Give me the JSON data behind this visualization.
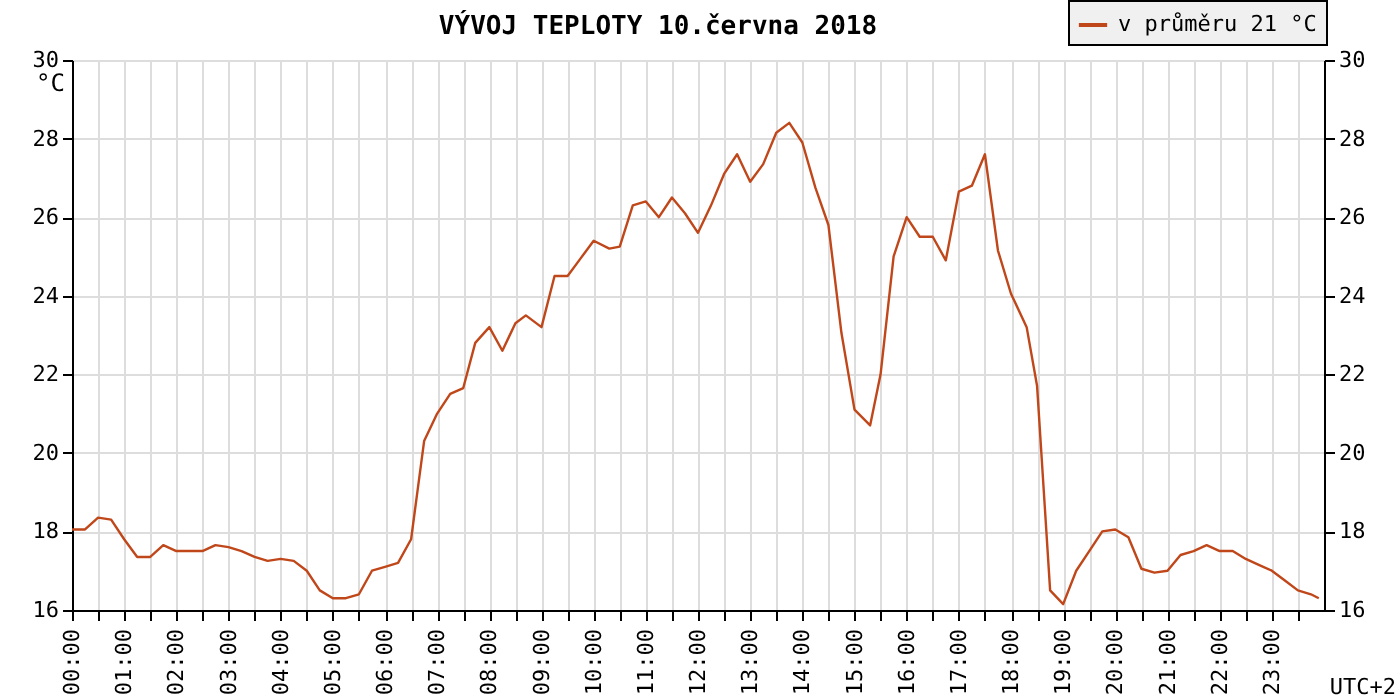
{
  "chart_data": {
    "type": "line",
    "title": "VÝVOJ TEPLOTY  10.června 2018",
    "ylabel": "°C",
    "annotations": [
      "UTC+2"
    ],
    "xlim": [
      0,
      24
    ],
    "xticks": [
      {
        "value": 0,
        "label": "00:00"
      },
      {
        "value": 0.5,
        "label": null
      },
      {
        "value": 1,
        "label": "01:00"
      },
      {
        "value": 1.5,
        "label": null
      },
      {
        "value": 2,
        "label": "02:00"
      },
      {
        "value": 2.5,
        "label": null
      },
      {
        "value": 3,
        "label": "03:00"
      },
      {
        "value": 3.5,
        "label": null
      },
      {
        "value": 4,
        "label": "04:00"
      },
      {
        "value": 4.5,
        "label": null
      },
      {
        "value": 5,
        "label": "05:00"
      },
      {
        "value": 5.5,
        "label": null
      },
      {
        "value": 6,
        "label": "06:00"
      },
      {
        "value": 6.5,
        "label": null
      },
      {
        "value": 7,
        "label": "07:00"
      },
      {
        "value": 7.5,
        "label": null
      },
      {
        "value": 8,
        "label": "08:00"
      },
      {
        "value": 8.5,
        "label": null
      },
      {
        "value": 9,
        "label": "09:00"
      },
      {
        "value": 9.5,
        "label": null
      },
      {
        "value": 10,
        "label": "10:00"
      },
      {
        "value": 10.5,
        "label": null
      },
      {
        "value": 11,
        "label": "11:00"
      },
      {
        "value": 11.5,
        "label": null
      },
      {
        "value": 12,
        "label": "12:00"
      },
      {
        "value": 12.5,
        "label": null
      },
      {
        "value": 13,
        "label": "13:00"
      },
      {
        "value": 13.5,
        "label": null
      },
      {
        "value": 14,
        "label": "14:00"
      },
      {
        "value": 14.5,
        "label": null
      },
      {
        "value": 15,
        "label": "15:00"
      },
      {
        "value": 15.5,
        "label": null
      },
      {
        "value": 16,
        "label": "16:00"
      },
      {
        "value": 16.5,
        "label": null
      },
      {
        "value": 17,
        "label": "17:00"
      },
      {
        "value": 17.5,
        "label": null
      },
      {
        "value": 18,
        "label": "18:00"
      },
      {
        "value": 18.5,
        "label": null
      },
      {
        "value": 19,
        "label": "19:00"
      },
      {
        "value": 19.5,
        "label": null
      },
      {
        "value": 20,
        "label": "20:00"
      },
      {
        "value": 20.5,
        "label": null
      },
      {
        "value": 21,
        "label": "21:00"
      },
      {
        "value": 21.5,
        "label": null
      },
      {
        "value": 22,
        "label": "22:00"
      },
      {
        "value": 22.5,
        "label": null
      },
      {
        "value": 23,
        "label": "23:00"
      },
      {
        "value": 23.5,
        "label": null
      }
    ],
    "ylim": [
      16,
      30
    ],
    "yticks": [
      16,
      18,
      20,
      22,
      24,
      26,
      28,
      30
    ],
    "y2lim": [
      16,
      30
    ],
    "y2ticks": [
      16,
      18,
      20,
      22,
      24,
      26,
      28,
      30
    ],
    "grid": true,
    "legend": "top right",
    "marker": "none",
    "line_style": "solid",
    "x": [
      0,
      0.25,
      0.5,
      0.75,
      1.0,
      1.25,
      1.5,
      1.75,
      2.0,
      2.5,
      2.75,
      3.0,
      3.25,
      3.5,
      3.75,
      4.0,
      4.25,
      4.5,
      4.75,
      5.0,
      5.25,
      5.5,
      5.75,
      6.0,
      6.25,
      6.5,
      6.75,
      7.0,
      7.25,
      7.5,
      7.73,
      8.0,
      8.25,
      8.5,
      8.7,
      9.0,
      9.25,
      9.5,
      9.75,
      10.0,
      10.3,
      10.5,
      10.75,
      11.0,
      11.25,
      11.5,
      11.75,
      12.0,
      12.25,
      12.5,
      12.75,
      13.0,
      13.25,
      13.5,
      13.75,
      14.0,
      14.25,
      14.5,
      14.75,
      15.0,
      15.3,
      15.5,
      15.75,
      16.0,
      16.25,
      16.5,
      16.75,
      17.0,
      17.25,
      17.5,
      17.75,
      18.0,
      18.3,
      18.5,
      18.75,
      19.0,
      19.25,
      19.5,
      19.75,
      20.0,
      20.25,
      20.5,
      20.75,
      21.0,
      21.25,
      21.5,
      21.75,
      22.0,
      22.25,
      22.5,
      22.75,
      23.0,
      23.25,
      23.5,
      23.75,
      23.9
    ],
    "series": [
      {
        "name": "v průměru 21 °C",
        "color": "#c0471a",
        "values": [
          18.05,
          18.05,
          18.35,
          18.3,
          17.8,
          17.35,
          17.35,
          17.65,
          17.5,
          17.5,
          17.65,
          17.6,
          17.5,
          17.35,
          17.25,
          17.3,
          17.25,
          17.0,
          16.5,
          16.3,
          16.3,
          16.4,
          17.0,
          17.1,
          17.2,
          17.8,
          20.3,
          21.0,
          21.5,
          21.65,
          22.8,
          23.2,
          22.6,
          23.3,
          23.5,
          23.2,
          24.5,
          24.5,
          24.95,
          25.4,
          25.2,
          25.25,
          26.3,
          26.4,
          26.0,
          26.5,
          26.1,
          25.6,
          26.3,
          27.1,
          27.6,
          26.9,
          27.35,
          28.15,
          28.4,
          27.9,
          26.75,
          25.8,
          23.05,
          21.1,
          20.7,
          22.0,
          25.0,
          26.0,
          25.5,
          25.5,
          24.9,
          26.65,
          26.8,
          27.6,
          25.15,
          24.05,
          23.2,
          21.7,
          16.5,
          16.15,
          17.0,
          17.5,
          18.0,
          18.05,
          17.85,
          17.05,
          16.95,
          17.0,
          17.4,
          17.5,
          17.65,
          17.5,
          17.5,
          17.3,
          17.15,
          17.0,
          16.75,
          16.5,
          16.4,
          16.3
        ]
      }
    ]
  }
}
